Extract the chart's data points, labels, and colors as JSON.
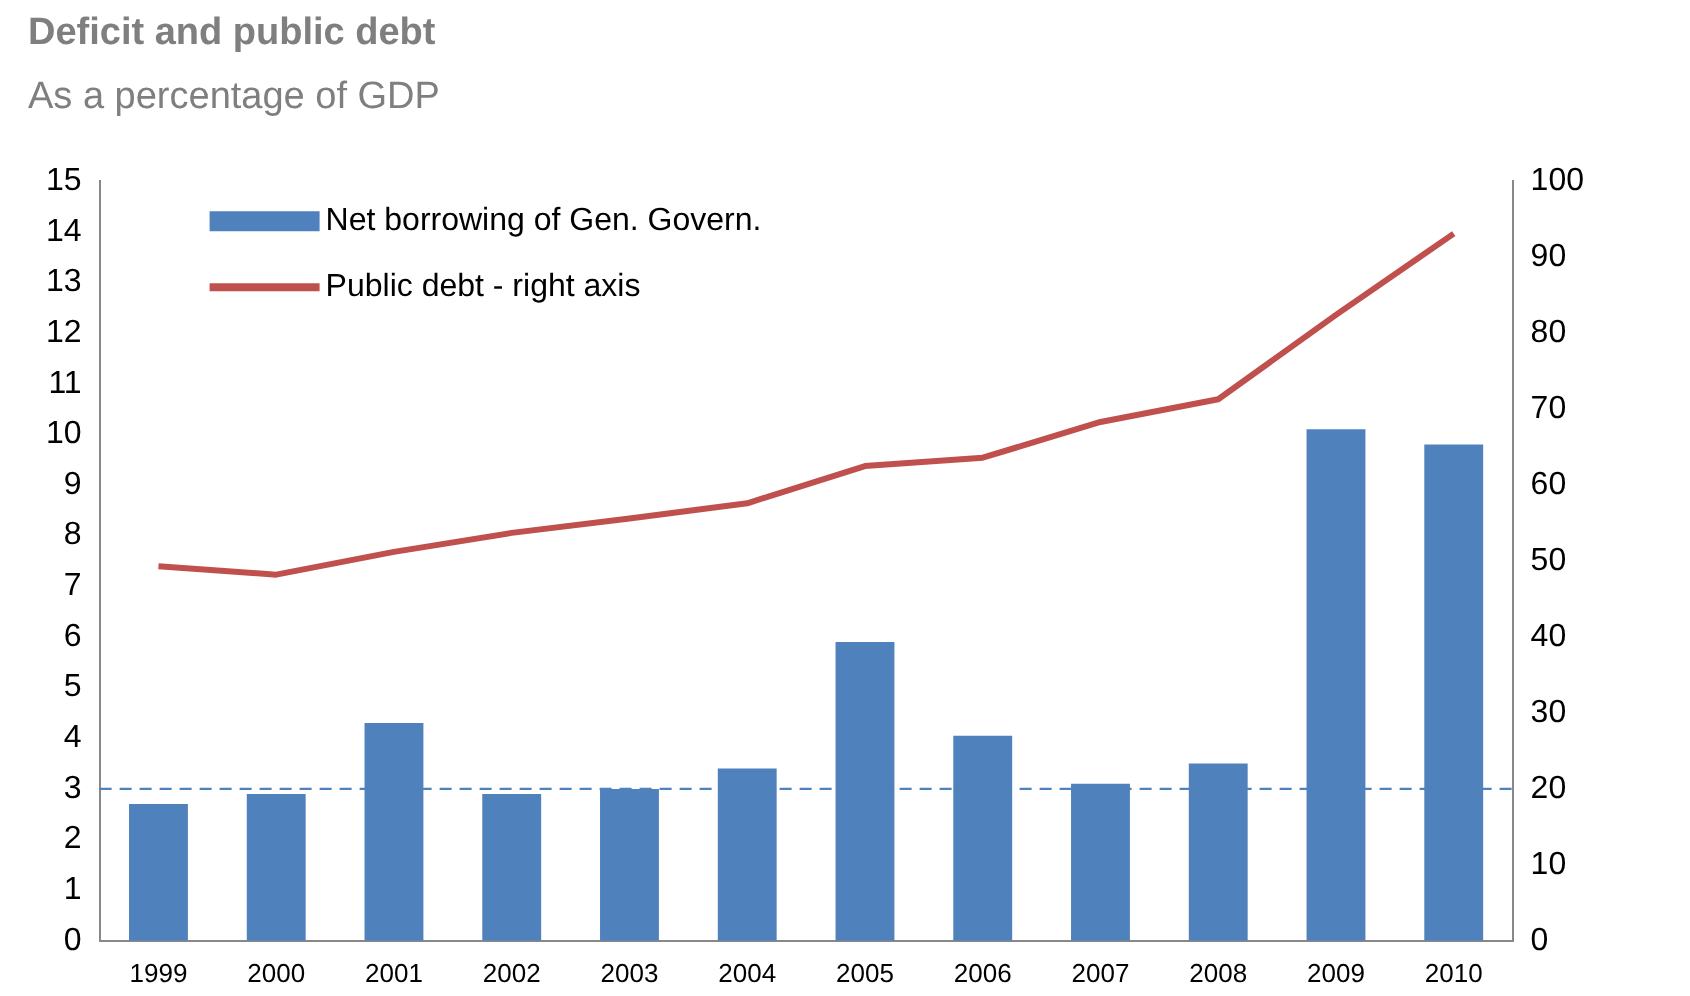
{
  "chart_data": {
    "type": "bar",
    "title": "Deficit and public debt",
    "subtitle": "As a percentage of GDP",
    "categories": [
      "1999",
      "2000",
      "2001",
      "2002",
      "2003",
      "2004",
      "2005",
      "2006",
      "2007",
      "2008",
      "2009",
      "2010"
    ],
    "series": [
      {
        "name": "Net borrowing of Gen. Govern.",
        "color": "#4f81bd",
        "values": [
          2.7,
          2.9,
          4.3,
          2.9,
          3.0,
          3.4,
          5.9,
          4.05,
          3.1,
          3.5,
          10.1,
          9.8
        ]
      },
      {
        "name": "Public debt - right axis",
        "type": "line",
        "axis": "y2",
        "color": "#c0504d",
        "values": [
          49.3,
          48.2,
          51.2,
          53.7,
          55.6,
          57.6,
          62.5,
          63.6,
          68.3,
          71.3,
          82.4,
          93.1
        ]
      }
    ],
    "ylim": [
      0,
      15
    ],
    "yticks": [
      0,
      1,
      2,
      3,
      4,
      5,
      6,
      7,
      8,
      9,
      10,
      11,
      12,
      13,
      14,
      15
    ],
    "y2lim": [
      0,
      100
    ],
    "y2ticks": [
      0,
      10,
      20,
      30,
      40,
      50,
      60,
      70,
      80,
      90,
      100
    ],
    "ref_lines": [
      {
        "axis": "y",
        "value": 3,
        "color": "#4f81bd",
        "line_style": "dashed"
      }
    ],
    "legend": "top left",
    "marker": "none",
    "line_style": "solid"
  }
}
